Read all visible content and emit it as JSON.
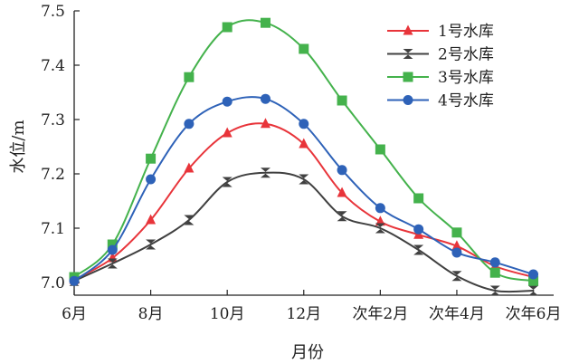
{
  "chart_data": {
    "type": "line",
    "title": "",
    "xlabel": "月份",
    "ylabel": "水位/m",
    "ylim": [
      7.0,
      7.5
    ],
    "yticks": [
      "7.0",
      "7.1",
      "7.2",
      "7.3",
      "7.4",
      "7.5"
    ],
    "xlim": [
      6,
      18.2
    ],
    "xticks": [
      {
        "x": 6,
        "label": "6月"
      },
      {
        "x": 8,
        "label": "8月"
      },
      {
        "x": 10,
        "label": "10月"
      },
      {
        "x": 12,
        "label": "12月"
      },
      {
        "x": 14,
        "label": "次年2月"
      },
      {
        "x": 16,
        "label": "次年4月"
      },
      {
        "x": 18,
        "label": "次年6月"
      }
    ],
    "x": [
      6,
      7,
      8,
      9,
      10,
      11,
      12,
      13,
      14,
      15,
      16,
      17,
      18
    ],
    "legend_position": "top-right",
    "series": [
      {
        "name": "1号水库",
        "color": "#e8343a",
        "marker": "triangle",
        "values": [
          7.005,
          7.045,
          7.115,
          7.21,
          7.275,
          7.292,
          7.255,
          7.165,
          7.112,
          7.088,
          7.067,
          7.03,
          7.01
        ]
      },
      {
        "name": "2号水库",
        "color": "#404040",
        "marker": "hourglass",
        "values": [
          7.003,
          7.035,
          7.07,
          7.115,
          7.185,
          7.202,
          7.19,
          7.122,
          7.1,
          7.06,
          7.012,
          6.985,
          6.985
        ]
      },
      {
        "name": "3号水库",
        "color": "#44b24c",
        "marker": "square",
        "values": [
          7.01,
          7.07,
          7.228,
          7.378,
          7.47,
          7.478,
          7.43,
          7.335,
          7.245,
          7.155,
          7.092,
          7.018,
          7.003
        ]
      },
      {
        "name": "4号水库",
        "color": "#2e62b8",
        "marker": "circle",
        "values": [
          7.003,
          7.06,
          7.19,
          7.292,
          7.333,
          7.338,
          7.292,
          7.207,
          7.137,
          7.098,
          7.055,
          7.037,
          7.015
        ]
      }
    ]
  }
}
